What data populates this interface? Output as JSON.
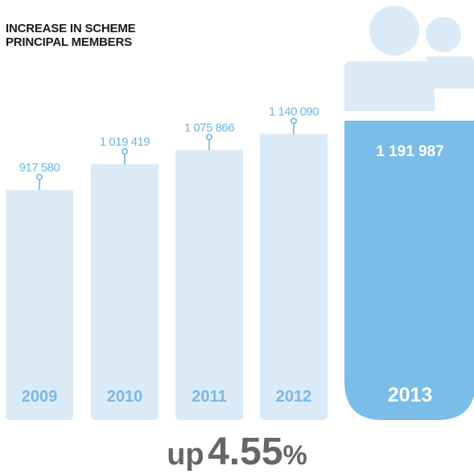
{
  "title_line1": "INCREASE IN SCHEME",
  "title_line2": "PRINCIPAL MEMBERS",
  "footer": {
    "prefix": "up",
    "value": "4.55",
    "unit": "%"
  },
  "colors": {
    "bar_light": "#daeaf7",
    "bar_highlight": "#79bde8",
    "label_light": "#6cb6e6",
    "year_light": "#79b9e6",
    "highlight_text": "#ffffff",
    "people_icon": "#daeaf7"
  },
  "chart_data": {
    "type": "bar",
    "title": "INCREASE IN SCHEME PRINCIPAL MEMBERS",
    "categories": [
      "2009",
      "2010",
      "2011",
      "2012",
      "2013"
    ],
    "values": [
      917580,
      1019419,
      1075866,
      1140090,
      1191987
    ],
    "value_labels": [
      "917 580",
      "1 019 419",
      "1 075 866",
      "1 140 090",
      "1 191 987"
    ],
    "highlight": "2013",
    "annotation": "up 4.55%"
  }
}
